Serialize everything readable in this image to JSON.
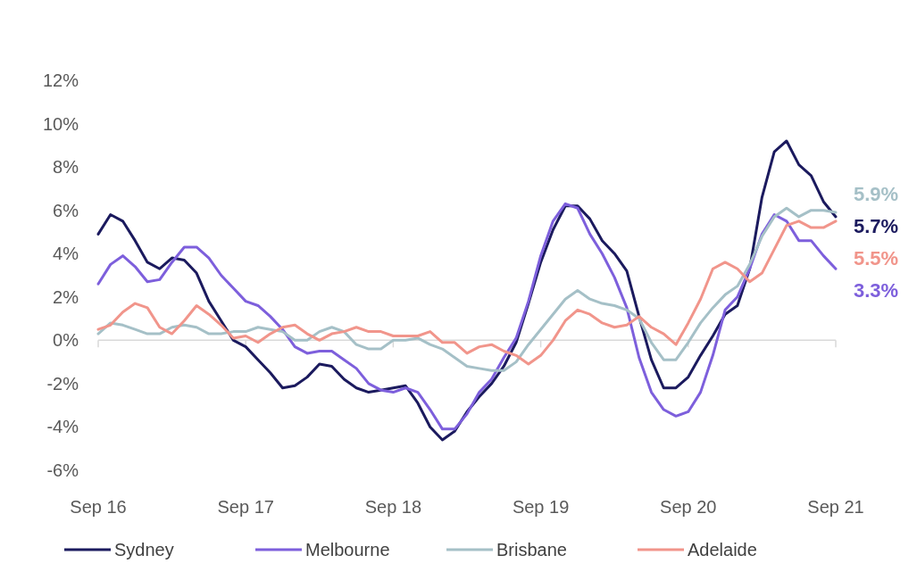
{
  "chart_data": {
    "type": "line",
    "categories": [
      "Sep 16",
      null,
      null,
      null,
      null,
      null,
      null,
      null,
      null,
      null,
      null,
      null,
      "Sep 17",
      null,
      null,
      null,
      null,
      null,
      null,
      null,
      null,
      null,
      null,
      null,
      "Sep 18",
      null,
      null,
      null,
      null,
      null,
      null,
      null,
      null,
      null,
      null,
      null,
      "Sep 19",
      null,
      null,
      null,
      null,
      null,
      null,
      null,
      null,
      null,
      null,
      null,
      "Sep 20",
      null,
      null,
      null,
      null,
      null,
      null,
      null,
      null,
      null,
      null,
      null,
      "Sep 21"
    ],
    "ylim": [
      -6,
      12
    ],
    "yticks": [
      {
        "value": -6,
        "label": "-6%"
      },
      {
        "value": -4,
        "label": "-4%"
      },
      {
        "value": -2,
        "label": "-2%"
      },
      {
        "value": 0,
        "label": "0%"
      },
      {
        "value": 2,
        "label": "2%"
      },
      {
        "value": 4,
        "label": "4%"
      },
      {
        "value": 6,
        "label": "6%"
      },
      {
        "value": 8,
        "label": "8%"
      },
      {
        "value": 10,
        "label": "10%"
      },
      {
        "value": 12,
        "label": "12%"
      }
    ],
    "legend": "bottom",
    "series": [
      {
        "name": "Sydney",
        "color": "#1b1a5e",
        "values": [
          4.9,
          5.8,
          5.5,
          4.6,
          3.6,
          3.3,
          3.8,
          3.7,
          3.1,
          1.8,
          0.9,
          0.0,
          -0.3,
          -0.9,
          -1.5,
          -2.2,
          -2.1,
          -1.7,
          -1.1,
          -1.2,
          -1.8,
          -2.2,
          -2.4,
          -2.3,
          -2.2,
          -2.1,
          -2.9,
          -4.0,
          -4.6,
          -4.2,
          -3.3,
          -2.6,
          -2.0,
          -1.2,
          -0.1,
          1.7,
          3.6,
          5.1,
          6.2,
          6.2,
          5.6,
          4.6,
          4.0,
          3.2,
          1.1,
          -0.9,
          -2.2,
          -2.2,
          -1.7,
          -0.7,
          0.2,
          1.2,
          1.6,
          3.3,
          6.6,
          8.7,
          9.2,
          8.1,
          7.6,
          6.4,
          5.7
        ],
        "value_labels": [
          null,
          null,
          null,
          null,
          null,
          null,
          null,
          null,
          null,
          null,
          null,
          null,
          null,
          null,
          null,
          null,
          null,
          null,
          null,
          null,
          null,
          null,
          null,
          null,
          null,
          null,
          null,
          null,
          null,
          null,
          null,
          null,
          null,
          null,
          null,
          null,
          null,
          null,
          null,
          null,
          null,
          null,
          null,
          null,
          null,
          null,
          null,
          null,
          null,
          null,
          null,
          null,
          null,
          null,
          null,
          null,
          null,
          null,
          null,
          null,
          "5.7%"
        ]
      },
      {
        "name": "Melbourne",
        "color": "#7d5fdc",
        "values": [
          2.6,
          3.5,
          3.9,
          3.4,
          2.7,
          2.8,
          3.6,
          4.3,
          4.3,
          3.8,
          3.0,
          2.4,
          1.8,
          1.6,
          1.1,
          0.5,
          -0.3,
          -0.6,
          -0.5,
          -0.5,
          -0.9,
          -1.3,
          -2.0,
          -2.3,
          -2.4,
          -2.2,
          -2.4,
          -3.2,
          -4.1,
          -4.1,
          -3.4,
          -2.4,
          -1.8,
          -0.8,
          0.1,
          1.8,
          3.9,
          5.5,
          6.3,
          6.1,
          4.9,
          4.0,
          2.9,
          1.5,
          -0.8,
          -2.4,
          -3.2,
          -3.5,
          -3.3,
          -2.4,
          -0.7,
          1.4,
          2.0,
          3.3,
          4.9,
          5.8,
          5.5,
          4.6,
          4.6,
          3.9,
          3.3
        ],
        "value_labels": [
          null,
          null,
          null,
          null,
          null,
          null,
          null,
          null,
          null,
          null,
          null,
          null,
          null,
          null,
          null,
          null,
          null,
          null,
          null,
          null,
          null,
          null,
          null,
          null,
          null,
          null,
          null,
          null,
          null,
          null,
          null,
          null,
          null,
          null,
          null,
          null,
          null,
          null,
          null,
          null,
          null,
          null,
          null,
          null,
          null,
          null,
          null,
          null,
          null,
          null,
          null,
          null,
          null,
          null,
          null,
          null,
          null,
          null,
          null,
          null,
          "3.3%"
        ]
      },
      {
        "name": "Brisbane",
        "color": "#a5c0c7",
        "values": [
          0.3,
          0.8,
          0.7,
          0.5,
          0.3,
          0.3,
          0.6,
          0.7,
          0.6,
          0.3,
          0.3,
          0.4,
          0.4,
          0.6,
          0.5,
          0.4,
          0.0,
          0.0,
          0.4,
          0.6,
          0.4,
          -0.2,
          -0.4,
          -0.4,
          0.0,
          0.0,
          0.1,
          -0.2,
          -0.4,
          -0.8,
          -1.2,
          -1.3,
          -1.4,
          -1.4,
          -1.0,
          -0.2,
          0.5,
          1.2,
          1.9,
          2.3,
          1.9,
          1.7,
          1.6,
          1.4,
          1.0,
          -0.1,
          -0.9,
          -0.9,
          -0.1,
          0.8,
          1.5,
          2.1,
          2.5,
          3.5,
          4.8,
          5.7,
          6.1,
          5.7,
          6.0,
          6.0,
          5.9
        ],
        "value_labels": [
          null,
          null,
          null,
          null,
          null,
          null,
          null,
          null,
          null,
          null,
          null,
          null,
          null,
          null,
          null,
          null,
          null,
          null,
          null,
          null,
          null,
          null,
          null,
          null,
          null,
          null,
          null,
          null,
          null,
          null,
          null,
          null,
          null,
          null,
          null,
          null,
          null,
          null,
          null,
          null,
          null,
          null,
          null,
          null,
          null,
          null,
          null,
          null,
          null,
          null,
          null,
          null,
          null,
          null,
          null,
          null,
          null,
          null,
          null,
          null,
          "5.9%"
        ]
      },
      {
        "name": "Adelaide",
        "color": "#f1958b",
        "values": [
          0.5,
          0.7,
          1.3,
          1.7,
          1.5,
          0.6,
          0.3,
          0.9,
          1.6,
          1.2,
          0.7,
          0.1,
          0.2,
          -0.1,
          0.3,
          0.6,
          0.7,
          0.3,
          0.0,
          0.3,
          0.4,
          0.6,
          0.4,
          0.4,
          0.2,
          0.2,
          0.2,
          0.4,
          -0.1,
          -0.1,
          -0.6,
          -0.3,
          -0.2,
          -0.5,
          -0.7,
          -1.1,
          -0.7,
          0.0,
          0.9,
          1.4,
          1.2,
          0.8,
          0.6,
          0.7,
          1.1,
          0.6,
          0.3,
          -0.2,
          0.8,
          1.9,
          3.3,
          3.6,
          3.3,
          2.7,
          3.1,
          4.2,
          5.3,
          5.5,
          5.2,
          5.2,
          5.5
        ],
        "value_labels": [
          null,
          null,
          null,
          null,
          null,
          null,
          null,
          null,
          null,
          null,
          null,
          null,
          null,
          null,
          null,
          null,
          null,
          null,
          null,
          null,
          null,
          null,
          null,
          null,
          null,
          null,
          null,
          null,
          null,
          null,
          null,
          null,
          null,
          null,
          null,
          null,
          null,
          null,
          null,
          null,
          null,
          null,
          null,
          null,
          null,
          null,
          null,
          null,
          null,
          null,
          null,
          null,
          null,
          null,
          null,
          null,
          null,
          null,
          null,
          null,
          "5.5%"
        ]
      }
    ]
  }
}
